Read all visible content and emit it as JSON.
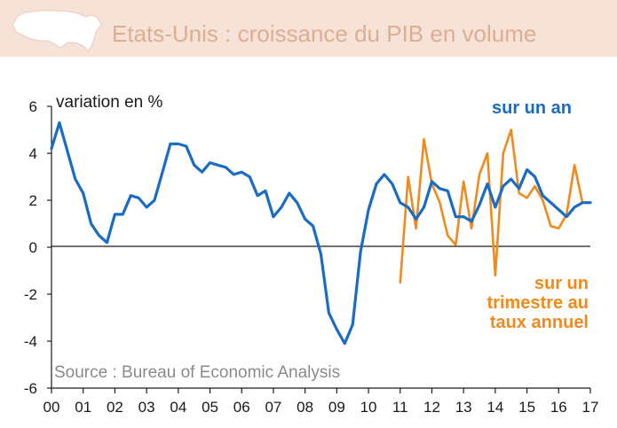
{
  "header": {
    "title": "Etats-Unis : croissance du PIB en volume",
    "icon": "us-map-icon",
    "band_color": "#f6e2d6",
    "title_color": "#dcae94"
  },
  "chart_data": {
    "type": "line",
    "title": "Etats-Unis : croissance du PIB en volume",
    "ylabel": "variation en %",
    "xlabel": "",
    "ylim": [
      -6,
      6
    ],
    "yticks": [
      "-6",
      "-4",
      "-2",
      "0",
      "2",
      "4",
      "6"
    ],
    "xlim": [
      2000,
      2017
    ],
    "xtick_labels": [
      "00",
      "01",
      "02",
      "03",
      "04",
      "05",
      "06",
      "07",
      "08",
      "09",
      "10",
      "11",
      "12",
      "13",
      "14",
      "15",
      "16",
      "17"
    ],
    "source": "Source : Bureau of Economic Analysis",
    "series": [
      {
        "name": "sur un an",
        "color": "#1a6bc4",
        "x": [
          2000.0,
          2000.25,
          2000.5,
          2000.75,
          2001.0,
          2001.25,
          2001.5,
          2001.75,
          2002.0,
          2002.25,
          2002.5,
          2002.75,
          2003.0,
          2003.25,
          2003.5,
          2003.75,
          2004.0,
          2004.25,
          2004.5,
          2004.75,
          2005.0,
          2005.25,
          2005.5,
          2005.75,
          2006.0,
          2006.25,
          2006.5,
          2006.75,
          2007.0,
          2007.25,
          2007.5,
          2007.75,
          2008.0,
          2008.25,
          2008.5,
          2008.75,
          2009.0,
          2009.25,
          2009.5,
          2009.75,
          2010.0,
          2010.25,
          2010.5,
          2010.75,
          2011.0,
          2011.25,
          2011.5,
          2011.75,
          2012.0,
          2012.25,
          2012.5,
          2012.75,
          2013.0,
          2013.25,
          2013.5,
          2013.75,
          2014.0,
          2014.25,
          2014.5,
          2014.75,
          2015.0,
          2015.25,
          2015.5,
          2015.75,
          2016.0,
          2016.25,
          2016.5,
          2016.75,
          2017.0
        ],
        "values": [
          4.2,
          5.3,
          4.1,
          2.9,
          2.3,
          1.0,
          0.5,
          0.2,
          1.4,
          1.4,
          2.2,
          2.1,
          1.7,
          2.0,
          3.2,
          4.4,
          4.4,
          4.3,
          3.5,
          3.2,
          3.6,
          3.5,
          3.4,
          3.1,
          3.2,
          3.0,
          2.2,
          2.4,
          1.3,
          1.7,
          2.3,
          1.9,
          1.2,
          0.9,
          -0.3,
          -2.8,
          -3.5,
          -4.1,
          -3.3,
          -0.2,
          1.6,
          2.7,
          3.1,
          2.7,
          1.9,
          1.7,
          1.2,
          1.7,
          2.8,
          2.5,
          2.4,
          1.3,
          1.3,
          1.1,
          1.8,
          2.7,
          1.7,
          2.6,
          2.9,
          2.5,
          3.3,
          3.0,
          2.2,
          1.9,
          1.6,
          1.3,
          1.7,
          1.9,
          1.9
        ]
      },
      {
        "name": "sur un trimestre au taux annuel",
        "label_lines": [
          "sur un",
          "trimestre au",
          "taux annuel"
        ],
        "color": "#f08a1c",
        "x": [
          2011.0,
          2011.25,
          2011.5,
          2011.75,
          2012.0,
          2012.25,
          2012.5,
          2012.75,
          2013.0,
          2013.25,
          2013.5,
          2013.75,
          2014.0,
          2014.25,
          2014.5,
          2014.75,
          2015.0,
          2015.25,
          2015.5,
          2015.75,
          2016.0,
          2016.25,
          2016.5,
          2016.75,
          2017.0
        ],
        "values": [
          -1.5,
          3.0,
          0.8,
          4.6,
          2.7,
          1.9,
          0.5,
          0.1,
          2.8,
          0.8,
          3.1,
          4.0,
          -1.2,
          4.0,
          5.0,
          2.3,
          2.1,
          2.6,
          2.0,
          0.9,
          0.8,
          1.4,
          3.5,
          1.9,
          1.9
        ]
      }
    ]
  }
}
